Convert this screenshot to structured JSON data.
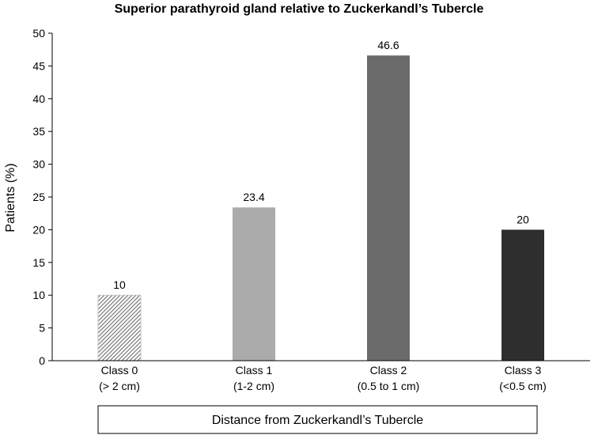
{
  "chart_data": {
    "type": "bar",
    "title": "Superior parathyroid gland relative to Zuckerkandl’s Tubercle",
    "xlabel": "Distance from Zuckerkandl’s Tubercle",
    "ylabel": "Patients (%)",
    "ylim": [
      0,
      50
    ],
    "ytick_step": 5,
    "yticks": [
      "0",
      "5",
      "10",
      "15",
      "20",
      "25",
      "30",
      "35",
      "40",
      "45",
      "50"
    ],
    "grid": false,
    "legend": "none",
    "categories": [
      [
        "Class 0",
        "(> 2 cm)"
      ],
      [
        "Class 1",
        "(1-2 cm)"
      ],
      [
        "Class 2",
        "(0.5 to 1 cm)"
      ],
      [
        "Class 3",
        "(<0.5 cm)"
      ]
    ],
    "values": [
      10,
      23.4,
      46.6,
      20
    ],
    "data_labels": [
      "10",
      "23.4",
      "46.6",
      "20"
    ],
    "bar_fills": [
      "hatched",
      "#ababab",
      "#6b6b6b",
      "#2e2e2e"
    ],
    "hatch_color": "#7a7a7a",
    "axis_color": "#000000"
  }
}
